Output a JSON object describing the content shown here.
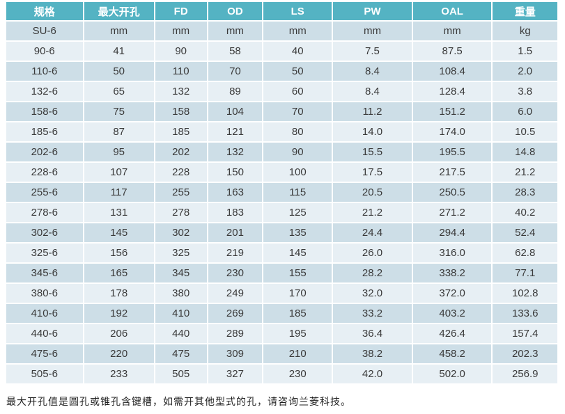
{
  "table": {
    "columns": [
      "规格",
      "最大开孔",
      "FD",
      "OD",
      "LS",
      "PW",
      "OAL",
      "重量"
    ],
    "units_row": [
      "SU-6",
      "mm",
      "mm",
      "mm",
      "mm",
      "mm",
      "mm",
      "kg"
    ],
    "rows": [
      [
        "90-6",
        "41",
        "90",
        "58",
        "40",
        "7.5",
        "87.5",
        "1.5"
      ],
      [
        "110-6",
        "50",
        "110",
        "70",
        "50",
        "8.4",
        "108.4",
        "2.0"
      ],
      [
        "132-6",
        "65",
        "132",
        "89",
        "60",
        "8.4",
        "128.4",
        "3.8"
      ],
      [
        "158-6",
        "75",
        "158",
        "104",
        "70",
        "11.2",
        "151.2",
        "6.0"
      ],
      [
        "185-6",
        "87",
        "185",
        "121",
        "80",
        "14.0",
        "174.0",
        "10.5"
      ],
      [
        "202-6",
        "95",
        "202",
        "132",
        "90",
        "15.5",
        "195.5",
        "14.8"
      ],
      [
        "228-6",
        "107",
        "228",
        "150",
        "100",
        "17.5",
        "217.5",
        "21.2"
      ],
      [
        "255-6",
        "117",
        "255",
        "163",
        "115",
        "20.5",
        "250.5",
        "28.3"
      ],
      [
        "278-6",
        "131",
        "278",
        "183",
        "125",
        "21.2",
        "271.2",
        "40.2"
      ],
      [
        "302-6",
        "145",
        "302",
        "201",
        "135",
        "24.4",
        "294.4",
        "52.4"
      ],
      [
        "325-6",
        "156",
        "325",
        "219",
        "145",
        "26.0",
        "316.0",
        "62.8"
      ],
      [
        "345-6",
        "165",
        "345",
        "230",
        "155",
        "28.2",
        "338.2",
        "77.1"
      ],
      [
        "380-6",
        "178",
        "380",
        "249",
        "170",
        "32.0",
        "372.0",
        "102.8"
      ],
      [
        "410-6",
        "192",
        "410",
        "269",
        "185",
        "33.2",
        "403.2",
        "133.6"
      ],
      [
        "440-6",
        "206",
        "440",
        "289",
        "195",
        "36.4",
        "426.4",
        "157.4"
      ],
      [
        "475-6",
        "220",
        "475",
        "309",
        "210",
        "38.2",
        "458.2",
        "202.3"
      ],
      [
        "505-6",
        "233",
        "505",
        "327",
        "230",
        "42.0",
        "502.0",
        "256.9"
      ]
    ]
  },
  "footer": {
    "note": "最大开孔值是圆孔或锥孔含键槽，如需开其他型式的孔，请咨询兰菱科技。"
  },
  "colors": {
    "header_bg": "#54b3c3",
    "header_text": "#ffffff",
    "band_dark": "#cddee7",
    "band_light": "#e7eff4",
    "body_text": "#3a3a3a"
  }
}
